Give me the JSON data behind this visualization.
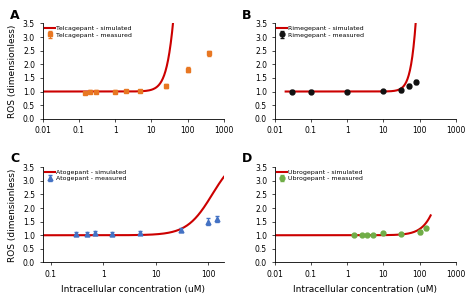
{
  "panels": [
    {
      "label": "A",
      "drug": "Telcagepant",
      "measured_x": [
        0.15,
        0.2,
        0.3,
        1.0,
        2.0,
        5.0,
        25.0,
        100.0,
        400.0
      ],
      "measured_y": [
        0.95,
        1.0,
        1.0,
        1.0,
        1.02,
        1.02,
        1.2,
        1.8,
        2.4
      ],
      "measured_yerr": [
        0.05,
        0.05,
        0.05,
        0.05,
        0.05,
        0.05,
        0.07,
        0.1,
        0.1
      ],
      "marker": "s",
      "marker_color": "#E87722",
      "sim_x_min": 0.01,
      "sim_x_max": 700,
      "sim_n": 400,
      "ec50": 70,
      "emax": 15,
      "hill": 2.8,
      "xlim_lo": 0.01,
      "xlim_hi": 1000,
      "ylim": [
        0,
        3.5
      ],
      "yticks": [
        0,
        0.5,
        1.0,
        1.5,
        2.0,
        2.5,
        3.0,
        3.5
      ],
      "xtick_labels": [
        "0.01",
        "0.1",
        "1",
        "10",
        "100",
        "1000"
      ]
    },
    {
      "label": "B",
      "drug": "Rimegepant",
      "measured_x": [
        0.03,
        0.1,
        1.0,
        10.0,
        30.0,
        50.0,
        80.0
      ],
      "measured_y": [
        1.0,
        1.0,
        1.0,
        1.02,
        1.05,
        1.2,
        1.35
      ],
      "measured_yerr": [
        0.04,
        0.04,
        0.04,
        0.04,
        0.05,
        0.06,
        0.07
      ],
      "marker": "o",
      "marker_color": "#111111",
      "sim_x_min": 0.02,
      "sim_x_max": 500,
      "sim_n": 400,
      "ec50": 130,
      "emax": 18,
      "hill": 3.5,
      "xlim_lo": 0.01,
      "xlim_hi": 1000,
      "ylim": [
        0,
        3.5
      ],
      "yticks": [
        0,
        0.5,
        1.0,
        1.5,
        2.0,
        2.5,
        3.0,
        3.5
      ],
      "xtick_labels": [
        "0.01",
        "0.1",
        "1",
        "10",
        "100",
        "1000"
      ]
    },
    {
      "label": "C",
      "drug": "Atogepant",
      "measured_x": [
        0.3,
        0.5,
        0.7,
        1.5,
        5.0,
        30.0,
        100.0,
        150.0
      ],
      "measured_y": [
        1.05,
        1.05,
        1.08,
        1.05,
        1.1,
        1.2,
        1.5,
        1.6
      ],
      "measured_yerr": [
        0.08,
        0.07,
        0.07,
        0.07,
        0.07,
        0.08,
        0.12,
        0.12
      ],
      "marker": "^",
      "marker_color": "#4472C4",
      "sim_x_min": 0.07,
      "sim_x_max": 200,
      "sim_n": 400,
      "ec50": 120,
      "emax": 3.0,
      "hill": 1.8,
      "xlim_lo": 0.07,
      "xlim_hi": 200,
      "ylim": [
        0,
        3.5
      ],
      "yticks": [
        0,
        0.5,
        1.0,
        1.5,
        2.0,
        2.5,
        3.0,
        3.5
      ],
      "xtick_labels": [
        "0.1",
        "1",
        "10",
        "100"
      ]
    },
    {
      "label": "D",
      "drug": "Ubrogepant",
      "measured_x": [
        1.5,
        2.5,
        3.5,
        5.0,
        10.0,
        30.0,
        100.0,
        150.0
      ],
      "measured_y": [
        1.0,
        1.0,
        1.02,
        1.0,
        1.08,
        1.05,
        1.12,
        1.25
      ],
      "measured_yerr": [
        0.04,
        0.04,
        0.04,
        0.04,
        0.05,
        0.05,
        0.06,
        0.06
      ],
      "marker": "o",
      "marker_color": "#70AD47",
      "sim_x_min": 0.01,
      "sim_x_max": 200,
      "sim_n": 400,
      "ec50": 600,
      "emax": 6,
      "hill": 1.8,
      "xlim_lo": 0.01,
      "xlim_hi": 1000,
      "ylim": [
        0,
        3.5
      ],
      "yticks": [
        0,
        0.5,
        1.0,
        1.5,
        2.0,
        2.5,
        3.0,
        3.5
      ],
      "xtick_labels": [
        "0.01",
        "0.1",
        "1",
        "10",
        "100",
        "1000"
      ]
    }
  ],
  "ylabel": "ROS (dimensionless)",
  "xlabel": "Intracellular concentration (uM)",
  "line_color": "#CC0000",
  "background_color": "#ffffff",
  "fig_width": 4.74,
  "fig_height": 3.02
}
